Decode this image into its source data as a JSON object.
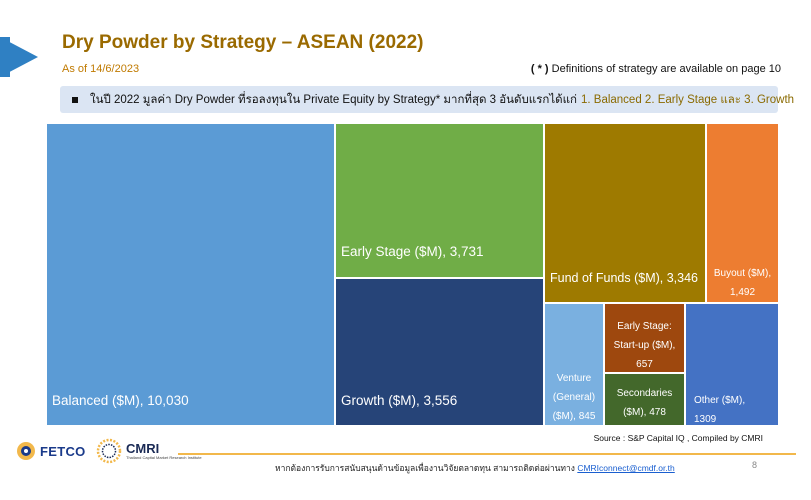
{
  "header": {
    "title": "Dry Powder by Strategy – ASEAN (2022)",
    "as_of": "As of 14/6/2023",
    "definitions_mark": "( * )",
    "definitions_text": "Definitions of strategy are available on page 10"
  },
  "note": {
    "text": "ในปี 2022 มูลค่า Dry Powder ที่รอลงทุนใน Private Equity by Strategy* มากที่สุด 3 อันดับแรกได้แก่",
    "highlight": "1. Balanced 2. Early Stage และ 3. Growth"
  },
  "chart_data": {
    "type": "treemap",
    "title": "Dry Powder by Strategy – ASEAN (2022)",
    "unit": "$M",
    "items": [
      {
        "label": "Balanced ($M), 10,030",
        "name": "Balanced",
        "value": 10030,
        "color": "#5b9bd5"
      },
      {
        "label": "Early Stage ($M), 3,731",
        "name": "Early Stage",
        "value": 3731,
        "color": "#70ad47"
      },
      {
        "label": "Growth ($M), 3,556",
        "name": "Growth",
        "value": 3556,
        "color": "#264478"
      },
      {
        "label": "Fund of Funds ($M), 3,346",
        "name": "Fund of Funds",
        "value": 3346,
        "color": "#9e7a00"
      },
      {
        "label": "Buyout ($M), 1,492",
        "name": "Buyout",
        "value": 1492,
        "color": "#ed7d31"
      },
      {
        "label": "Other ($M), 1309",
        "name": "Other",
        "value": 1309,
        "color": "#4472c4"
      },
      {
        "label": "Venture (General) ($M), 845",
        "name": "Venture (General)",
        "value": 845,
        "color": "#7ab0e0"
      },
      {
        "label": "Early Stage: Start-up ($M), 657",
        "name": "Early Stage: Start-up",
        "value": 657,
        "color": "#9e480e"
      },
      {
        "label": "Secondaries ($M), 478",
        "name": "Secondaries",
        "value": 478,
        "color": "#43682b"
      }
    ]
  },
  "source": "Source : S&P Capital IQ , Compiled by CMRI",
  "footer": {
    "text": "หากต้องการรับการสนับสนุนด้านข้อมูลเพื่องานวิจัยตลาดทุน สามารถติดต่อผ่านทาง",
    "email": "CMRIconnect@cmdf.or.th",
    "page": "8"
  },
  "logos": {
    "fetco": "FETCO",
    "cmri": "CMRI",
    "cmri_sub": "Thailand Capital Market Research Institute"
  }
}
